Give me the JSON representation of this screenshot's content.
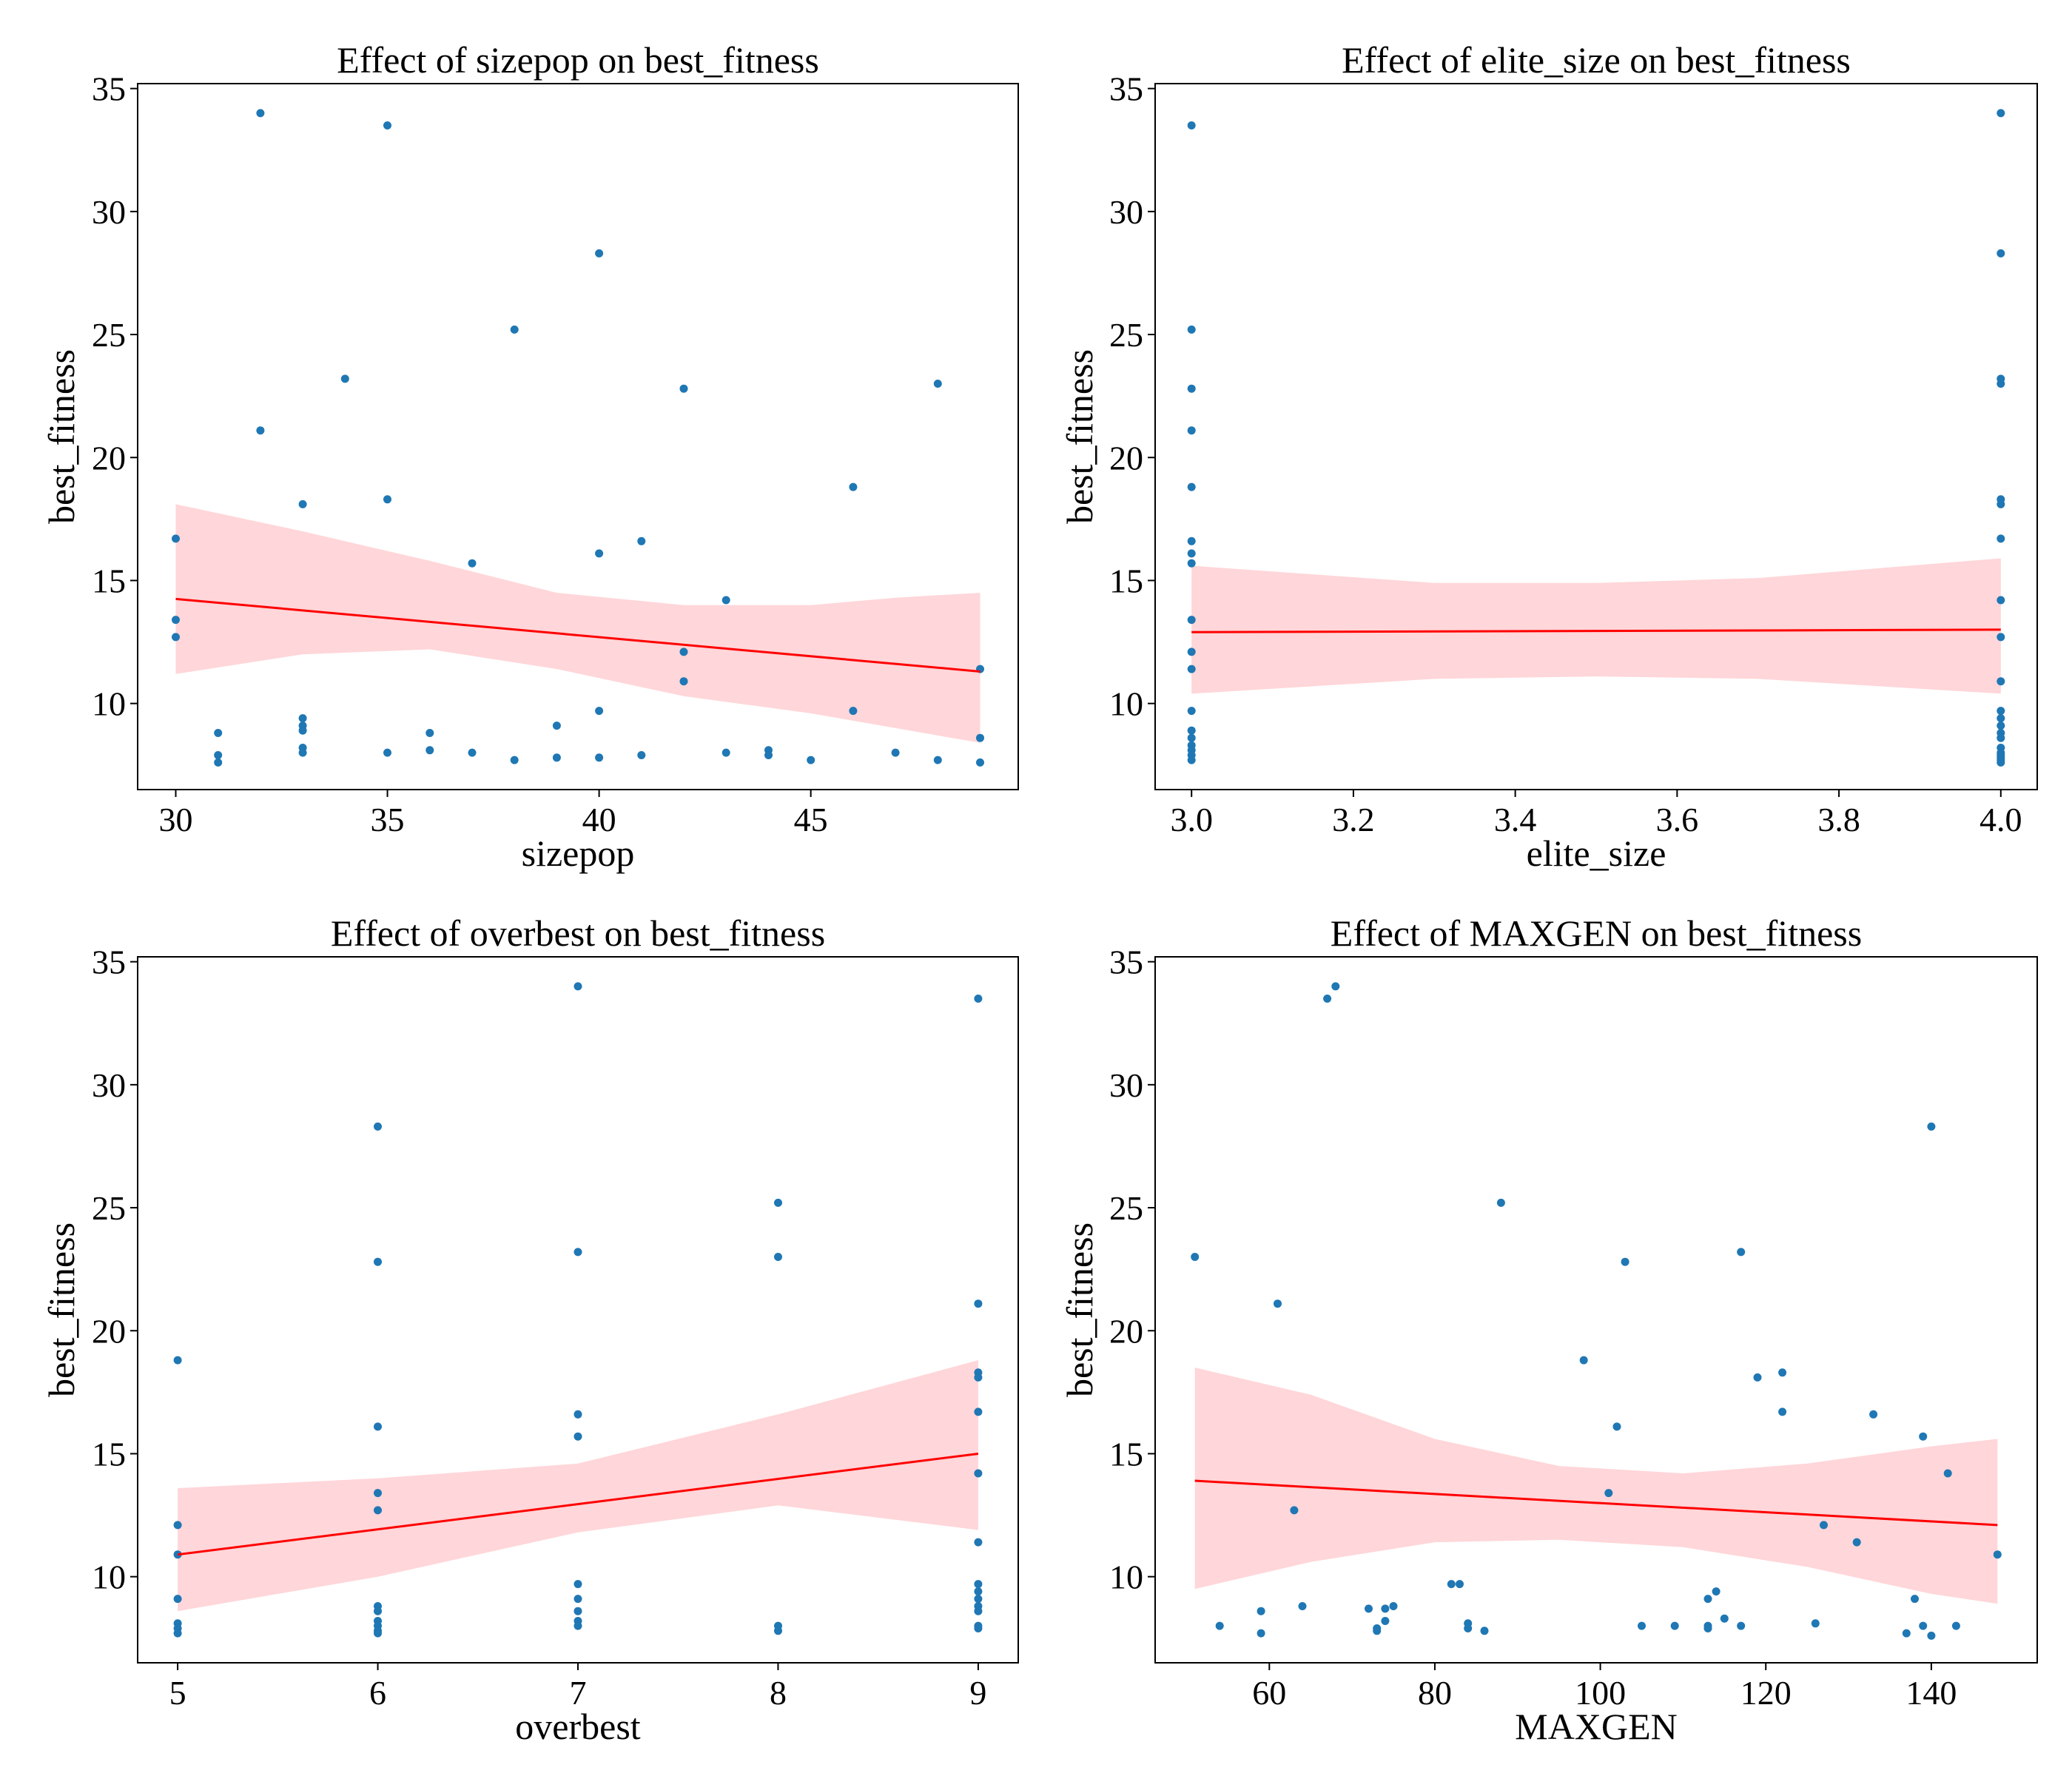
{
  "colors": {
    "points": "#1f77b4",
    "line": "#ff0000",
    "band": "#ffd6d9"
  },
  "chart_data": [
    {
      "type": "scatter",
      "title": "Effect of sizepop on best_fitness",
      "xlabel": "sizepop",
      "ylabel": "best_fitness",
      "xlim": [
        29.1,
        49.9
      ],
      "ylim": [
        6.5,
        35.2
      ],
      "xticks": [
        30,
        35,
        40,
        45
      ],
      "yticks": [
        10,
        15,
        20,
        25,
        30,
        35
      ],
      "points": [
        [
          30,
          16.7
        ],
        [
          30,
          13.4
        ],
        [
          30,
          12.7
        ],
        [
          31,
          8.8
        ],
        [
          31,
          7.9
        ],
        [
          31,
          7.6
        ],
        [
          32,
          34.0
        ],
        [
          32,
          21.1
        ],
        [
          33,
          18.1
        ],
        [
          33,
          9.4
        ],
        [
          33,
          9.1
        ],
        [
          33,
          8.9
        ],
        [
          33,
          8.2
        ],
        [
          33,
          8.0
        ],
        [
          34,
          23.2
        ],
        [
          35,
          33.5
        ],
        [
          35,
          18.3
        ],
        [
          35,
          8.0
        ],
        [
          36,
          8.8
        ],
        [
          36,
          8.1
        ],
        [
          37,
          15.7
        ],
        [
          37,
          8.0
        ],
        [
          38,
          25.2
        ],
        [
          38,
          7.7
        ],
        [
          39,
          9.1
        ],
        [
          39,
          7.8
        ],
        [
          40,
          28.3
        ],
        [
          40,
          16.1
        ],
        [
          40,
          9.7
        ],
        [
          40,
          7.8
        ],
        [
          41,
          16.6
        ],
        [
          41,
          7.9
        ],
        [
          42,
          22.8
        ],
        [
          42,
          12.1
        ],
        [
          42,
          10.9
        ],
        [
          43,
          14.2
        ],
        [
          43,
          8.0
        ],
        [
          44,
          8.1
        ],
        [
          44,
          7.9
        ],
        [
          45,
          7.7
        ],
        [
          46,
          18.8
        ],
        [
          46,
          9.7
        ],
        [
          47,
          8.0
        ],
        [
          48,
          23.0
        ],
        [
          48,
          7.7
        ],
        [
          49,
          11.4
        ],
        [
          49,
          8.6
        ],
        [
          49,
          7.6
        ]
      ],
      "fit": {
        "x": [
          30,
          49
        ],
        "y": [
          14.25,
          11.3
        ]
      },
      "band": [
        [
          30,
          11.2,
          18.1
        ],
        [
          33,
          12.0,
          17.0
        ],
        [
          36,
          12.2,
          15.8
        ],
        [
          39,
          11.4,
          14.5
        ],
        [
          42,
          10.3,
          14.0
        ],
        [
          45,
          9.6,
          14.0
        ],
        [
          47,
          9.0,
          14.3
        ],
        [
          49,
          8.4,
          14.5
        ]
      ]
    },
    {
      "type": "scatter",
      "title": "Effect of elite_size on best_fitness",
      "xlabel": "elite_size",
      "ylabel": "best_fitness",
      "xlim": [
        2.955,
        4.045
      ],
      "ylim": [
        6.5,
        35.2
      ],
      "xticks": [
        3.0,
        3.2,
        3.4,
        3.6,
        3.8,
        4.0
      ],
      "yticks": [
        10,
        15,
        20,
        25,
        30,
        35
      ],
      "points": [
        [
          3,
          33.5
        ],
        [
          3,
          25.2
        ],
        [
          3,
          22.8
        ],
        [
          3,
          21.1
        ],
        [
          3,
          18.8
        ],
        [
          3,
          16.6
        ],
        [
          3,
          16.1
        ],
        [
          3,
          15.7
        ],
        [
          3,
          13.4
        ],
        [
          3,
          12.1
        ],
        [
          3,
          11.4
        ],
        [
          3,
          9.7
        ],
        [
          3,
          8.9
        ],
        [
          3,
          8.6
        ],
        [
          3,
          8.3
        ],
        [
          3,
          8.1
        ],
        [
          3,
          7.9
        ],
        [
          3,
          7.7
        ],
        [
          4,
          34.0
        ],
        [
          4,
          28.3
        ],
        [
          4,
          23.2
        ],
        [
          4,
          23.0
        ],
        [
          4,
          18.3
        ],
        [
          4,
          18.1
        ],
        [
          4,
          16.7
        ],
        [
          4,
          14.2
        ],
        [
          4,
          12.7
        ],
        [
          4,
          10.9
        ],
        [
          4,
          9.7
        ],
        [
          4,
          9.4
        ],
        [
          4,
          9.1
        ],
        [
          4,
          8.8
        ],
        [
          4,
          8.6
        ],
        [
          4,
          8.2
        ],
        [
          4,
          8.0
        ],
        [
          4,
          7.9
        ],
        [
          4,
          7.8
        ],
        [
          4,
          7.7
        ],
        [
          4,
          7.6
        ]
      ],
      "fit": {
        "x": [
          3,
          4
        ],
        "y": [
          12.9,
          13.0
        ]
      },
      "band": [
        [
          3,
          10.4,
          15.6
        ],
        [
          3.3,
          11.0,
          14.9
        ],
        [
          3.5,
          11.1,
          14.9
        ],
        [
          3.7,
          11.0,
          15.1
        ],
        [
          4,
          10.4,
          15.9
        ]
      ]
    },
    {
      "type": "scatter",
      "title": "Effect of overbest on best_fitness",
      "xlabel": "overbest",
      "ylabel": "best_fitness",
      "xlim": [
        4.8,
        9.2
      ],
      "ylim": [
        6.5,
        35.2
      ],
      "xticks": [
        5,
        6,
        7,
        8,
        9
      ],
      "yticks": [
        10,
        15,
        20,
        25,
        30,
        35
      ],
      "points": [
        [
          5,
          18.8
        ],
        [
          5,
          12.1
        ],
        [
          5,
          10.9
        ],
        [
          5,
          9.1
        ],
        [
          5,
          8.1
        ],
        [
          5,
          7.9
        ],
        [
          5,
          7.7
        ],
        [
          6,
          28.3
        ],
        [
          6,
          22.8
        ],
        [
          6,
          16.1
        ],
        [
          6,
          13.4
        ],
        [
          6,
          12.7
        ],
        [
          6,
          8.8
        ],
        [
          6,
          8.6
        ],
        [
          6,
          8.2
        ],
        [
          6,
          8.0
        ],
        [
          6,
          7.8
        ],
        [
          6,
          7.7
        ],
        [
          7,
          34.0
        ],
        [
          7,
          23.2
        ],
        [
          7,
          16.6
        ],
        [
          7,
          15.7
        ],
        [
          7,
          9.7
        ],
        [
          7,
          9.1
        ],
        [
          7,
          8.6
        ],
        [
          7,
          8.2
        ],
        [
          7,
          8.0
        ],
        [
          8,
          25.2
        ],
        [
          8,
          23.0
        ],
        [
          8,
          8.0
        ],
        [
          8,
          7.8
        ],
        [
          9,
          33.5
        ],
        [
          9,
          21.1
        ],
        [
          9,
          18.3
        ],
        [
          9,
          18.1
        ],
        [
          9,
          16.7
        ],
        [
          9,
          14.2
        ],
        [
          9,
          11.4
        ],
        [
          9,
          9.7
        ],
        [
          9,
          9.4
        ],
        [
          9,
          9.1
        ],
        [
          9,
          8.8
        ],
        [
          9,
          8.6
        ],
        [
          9,
          8.0
        ],
        [
          9,
          7.9
        ]
      ],
      "fit": {
        "x": [
          5,
          9
        ],
        "y": [
          10.9,
          15.0
        ]
      },
      "band": [
        [
          5,
          8.6,
          13.6
        ],
        [
          6,
          10.0,
          14.0
        ],
        [
          7,
          11.8,
          14.6
        ],
        [
          8,
          12.9,
          16.6
        ],
        [
          9,
          11.9,
          18.8
        ]
      ]
    },
    {
      "type": "scatter",
      "title": "Effect of MAXGEN on best_fitness",
      "xlabel": "MAXGEN",
      "ylabel": "best_fitness",
      "xlim": [
        46.2,
        152.8
      ],
      "ylim": [
        6.5,
        35.2
      ],
      "xticks": [
        60,
        80,
        100,
        120,
        140
      ],
      "yticks": [
        10,
        15,
        20,
        25,
        30,
        35
      ],
      "points": [
        [
          51,
          23.0
        ],
        [
          54,
          8.0
        ],
        [
          59,
          8.6
        ],
        [
          59,
          7.7
        ],
        [
          61,
          21.1
        ],
        [
          63,
          12.7
        ],
        [
          64,
          8.8
        ],
        [
          67,
          33.5
        ],
        [
          68,
          34.0
        ],
        [
          72,
          8.7
        ],
        [
          73,
          7.9
        ],
        [
          73,
          7.8
        ],
        [
          74,
          8.7
        ],
        [
          74,
          8.2
        ],
        [
          75,
          8.8
        ],
        [
          82,
          9.7
        ],
        [
          83,
          9.7
        ],
        [
          84,
          8.1
        ],
        [
          84,
          7.9
        ],
        [
          86,
          7.8
        ],
        [
          88,
          25.2
        ],
        [
          98,
          18.8
        ],
        [
          101,
          13.4
        ],
        [
          102,
          16.1
        ],
        [
          103,
          22.8
        ],
        [
          105,
          8.0
        ],
        [
          109,
          8.0
        ],
        [
          113,
          9.1
        ],
        [
          113,
          8.0
        ],
        [
          113,
          7.9
        ],
        [
          114,
          9.4
        ],
        [
          115,
          8.3
        ],
        [
          117,
          23.2
        ],
        [
          117,
          8.0
        ],
        [
          119,
          18.1
        ],
        [
          122,
          18.3
        ],
        [
          122,
          16.7
        ],
        [
          126,
          8.1
        ],
        [
          127,
          12.1
        ],
        [
          131,
          11.4
        ],
        [
          133,
          16.6
        ],
        [
          137,
          7.7
        ],
        [
          138,
          9.1
        ],
        [
          139,
          15.7
        ],
        [
          139,
          8.0
        ],
        [
          140,
          28.3
        ],
        [
          140,
          7.6
        ],
        [
          142,
          14.2
        ],
        [
          143,
          8.0
        ],
        [
          148,
          10.9
        ]
      ],
      "fit": {
        "x": [
          51,
          148
        ],
        "y": [
          13.9,
          12.1
        ]
      },
      "band": [
        [
          51,
          9.5,
          18.5
        ],
        [
          65,
          10.6,
          17.4
        ],
        [
          80,
          11.4,
          15.6
        ],
        [
          95,
          11.5,
          14.5
        ],
        [
          110,
          11.2,
          14.2
        ],
        [
          125,
          10.4,
          14.6
        ],
        [
          140,
          9.3,
          15.3
        ],
        [
          148,
          8.9,
          15.6
        ]
      ]
    }
  ]
}
